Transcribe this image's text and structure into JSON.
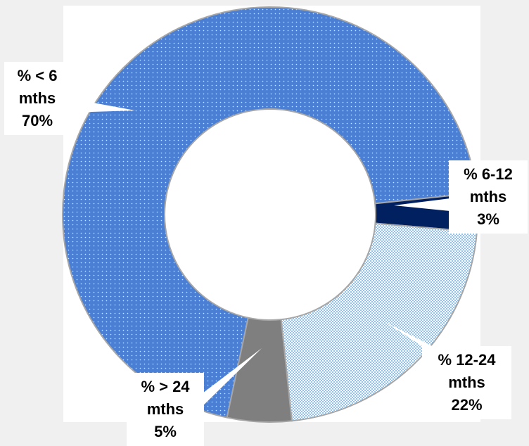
{
  "chart_data": {
    "type": "donut",
    "categories": [
      "% < 6 mths",
      "% 6-12 mths",
      "% 12-24 mths",
      "% > 24 mths"
    ],
    "values": [
      70,
      3,
      22,
      5
    ],
    "value_labels": [
      "70%",
      "3%",
      "22%",
      "5%"
    ],
    "colors": [
      "#4a7fd4",
      "#002060",
      "#a9d3f2",
      "#7f7f7f"
    ]
  }
}
